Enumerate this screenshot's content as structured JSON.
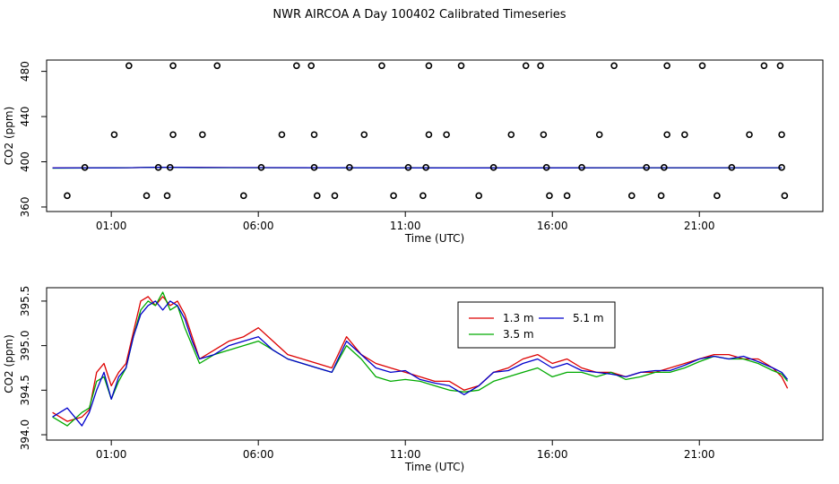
{
  "title": "NWR AIRCOA A  Day 100402  Calibrated Timeseries",
  "colors": {
    "h13": "#dd0000",
    "h35": "#00aa00",
    "h51": "#0000cc",
    "axis": "#000000"
  },
  "chart_data": [
    {
      "type": "scatter",
      "title": "NWR AIRCOA A  Day 100402  Calibrated Timeseries",
      "xlabel": "Time (UTC)",
      "ylabel": "CO2 (ppm)",
      "x_unit": "hours UTC",
      "xlim": [
        -1.2,
        25.2
      ],
      "ylim": [
        356,
        490
      ],
      "xticks": [
        1,
        6,
        11,
        16,
        21
      ],
      "xtick_labels": [
        "01:00",
        "06:00",
        "11:00",
        "16:00",
        "21:00"
      ],
      "yticks": [
        360,
        400,
        440,
        480
      ],
      "ytick_labels": [
        "360",
        "400",
        "440",
        "480"
      ],
      "points": [
        [
          -0.5,
          370
        ],
        [
          0.1,
          395
        ],
        [
          1.1,
          424
        ],
        [
          1.6,
          485
        ],
        [
          2.2,
          370
        ],
        [
          2.6,
          395
        ],
        [
          2.9,
          370
        ],
        [
          3.0,
          395
        ],
        [
          3.1,
          424
        ],
        [
          3.1,
          485
        ],
        [
          4.1,
          424
        ],
        [
          4.6,
          485
        ],
        [
          5.5,
          370
        ],
        [
          6.1,
          395
        ],
        [
          6.8,
          424
        ],
        [
          7.3,
          485
        ],
        [
          7.8,
          485
        ],
        [
          7.9,
          424
        ],
        [
          7.9,
          395
        ],
        [
          8.0,
          370
        ],
        [
          8.6,
          370
        ],
        [
          9.1,
          395
        ],
        [
          9.6,
          424
        ],
        [
          10.2,
          485
        ],
        [
          10.6,
          370
        ],
        [
          11.1,
          395
        ],
        [
          11.6,
          370
        ],
        [
          11.7,
          395
        ],
        [
          11.8,
          424
        ],
        [
          11.8,
          485
        ],
        [
          12.4,
          424
        ],
        [
          12.9,
          485
        ],
        [
          13.5,
          370
        ],
        [
          14.0,
          395
        ],
        [
          14.6,
          424
        ],
        [
          15.1,
          485
        ],
        [
          15.6,
          485
        ],
        [
          15.7,
          424
        ],
        [
          15.8,
          395
        ],
        [
          15.9,
          370
        ],
        [
          16.5,
          370
        ],
        [
          17.0,
          395
        ],
        [
          17.6,
          424
        ],
        [
          18.1,
          485
        ],
        [
          18.7,
          370
        ],
        [
          19.2,
          395
        ],
        [
          19.7,
          370
        ],
        [
          19.8,
          395
        ],
        [
          19.9,
          424
        ],
        [
          19.9,
          485
        ],
        [
          20.5,
          424
        ],
        [
          21.1,
          485
        ],
        [
          21.6,
          370
        ],
        [
          22.1,
          395
        ],
        [
          22.7,
          424
        ],
        [
          23.2,
          485
        ],
        [
          23.75,
          485
        ],
        [
          23.8,
          424
        ],
        [
          23.8,
          395
        ],
        [
          23.9,
          370
        ]
      ],
      "series": [
        {
          "name": "1.3 m",
          "mean_line": [
            [
              -1.0,
              394.5
            ],
            [
              1.5,
              394.7
            ],
            [
              2.5,
              395.2
            ],
            [
              4.0,
              394.9
            ],
            [
              8.0,
              394.8
            ],
            [
              13.0,
              394.5
            ],
            [
              18.0,
              394.7
            ],
            [
              23.8,
              394.7
            ]
          ]
        },
        {
          "name": "3.5 m",
          "mean_line": [
            [
              -1.0,
              394.4
            ],
            [
              1.5,
              394.7
            ],
            [
              2.5,
              395.2
            ],
            [
              4.0,
              394.8
            ],
            [
              8.0,
              394.7
            ],
            [
              13.0,
              394.5
            ],
            [
              18.0,
              394.6
            ],
            [
              23.8,
              394.6
            ]
          ]
        },
        {
          "name": "5.1 m",
          "mean_line": [
            [
              -1.0,
              394.5
            ],
            [
              1.5,
              394.7
            ],
            [
              2.5,
              395.2
            ],
            [
              4.0,
              394.9
            ],
            [
              8.0,
              394.8
            ],
            [
              13.0,
              394.5
            ],
            [
              18.0,
              394.7
            ],
            [
              23.8,
              394.7
            ]
          ]
        }
      ]
    },
    {
      "type": "line",
      "title": "",
      "xlabel": "Time (UTC)",
      "ylabel": "CO2 (ppm)",
      "x_unit": "hours UTC",
      "xlim": [
        -1.2,
        25.2
      ],
      "ylim": [
        393.94,
        395.65
      ],
      "xticks": [
        1,
        6,
        11,
        16,
        21
      ],
      "xtick_labels": [
        "01:00",
        "06:00",
        "11:00",
        "16:00",
        "21:00"
      ],
      "yticks": [
        394.0,
        394.5,
        395.0,
        395.5
      ],
      "ytick_labels": [
        "394.0",
        "394.5",
        "395.0",
        "395.5"
      ],
      "legend": {
        "position": "top-center",
        "entries": [
          "1.3 m",
          "5.1 m",
          "3.5 m"
        ]
      },
      "series": [
        {
          "name": "1.3 m",
          "points": [
            [
              -1.0,
              394.25
            ],
            [
              -0.5,
              394.15
            ],
            [
              0.0,
              394.2
            ],
            [
              0.25,
              394.28
            ],
            [
              0.5,
              394.7
            ],
            [
              0.75,
              394.8
            ],
            [
              1.0,
              394.55
            ],
            [
              1.25,
              394.7
            ],
            [
              1.5,
              394.8
            ],
            [
              1.75,
              395.15
            ],
            [
              2.0,
              395.5
            ],
            [
              2.25,
              395.55
            ],
            [
              2.5,
              395.45
            ],
            [
              2.75,
              395.55
            ],
            [
              3.0,
              395.45
            ],
            [
              3.25,
              395.5
            ],
            [
              3.5,
              395.35
            ],
            [
              3.75,
              395.1
            ],
            [
              4.0,
              394.85
            ],
            [
              4.5,
              394.95
            ],
            [
              5.0,
              395.05
            ],
            [
              5.5,
              395.1
            ],
            [
              6.0,
              395.2
            ],
            [
              6.5,
              395.05
            ],
            [
              7.0,
              394.9
            ],
            [
              7.5,
              394.85
            ],
            [
              8.0,
              394.8
            ],
            [
              8.5,
              394.75
            ],
            [
              9.0,
              395.1
            ],
            [
              9.5,
              394.9
            ],
            [
              10.0,
              394.8
            ],
            [
              10.5,
              394.75
            ],
            [
              11.0,
              394.7
            ],
            [
              11.5,
              394.65
            ],
            [
              12.0,
              394.6
            ],
            [
              12.5,
              394.6
            ],
            [
              13.0,
              394.5
            ],
            [
              13.5,
              394.55
            ],
            [
              14.0,
              394.7
            ],
            [
              14.5,
              394.75
            ],
            [
              15.0,
              394.85
            ],
            [
              15.5,
              394.9
            ],
            [
              16.0,
              394.8
            ],
            [
              16.5,
              394.85
            ],
            [
              17.0,
              394.75
            ],
            [
              17.5,
              394.7
            ],
            [
              18.0,
              394.7
            ],
            [
              18.5,
              394.65
            ],
            [
              19.0,
              394.7
            ],
            [
              19.5,
              394.7
            ],
            [
              20.0,
              394.75
            ],
            [
              20.5,
              394.8
            ],
            [
              21.0,
              394.85
            ],
            [
              21.5,
              394.9
            ],
            [
              22.0,
              394.9
            ],
            [
              22.5,
              394.85
            ],
            [
              23.0,
              394.85
            ],
            [
              23.5,
              394.75
            ],
            [
              23.8,
              394.65
            ],
            [
              24.0,
              394.52
            ]
          ]
        },
        {
          "name": "3.5 m",
          "points": [
            [
              -1.0,
              394.2
            ],
            [
              -0.5,
              394.1
            ],
            [
              0.0,
              394.25
            ],
            [
              0.25,
              394.3
            ],
            [
              0.5,
              394.6
            ],
            [
              0.75,
              394.65
            ],
            [
              1.0,
              394.4
            ],
            [
              1.25,
              394.6
            ],
            [
              1.5,
              394.75
            ],
            [
              1.75,
              395.1
            ],
            [
              2.0,
              395.4
            ],
            [
              2.25,
              395.5
            ],
            [
              2.5,
              395.45
            ],
            [
              2.75,
              395.6
            ],
            [
              3.0,
              395.4
            ],
            [
              3.25,
              395.45
            ],
            [
              3.5,
              395.2
            ],
            [
              3.75,
              395.0
            ],
            [
              4.0,
              394.8
            ],
            [
              4.5,
              394.9
            ],
            [
              5.0,
              394.95
            ],
            [
              5.5,
              395.0
            ],
            [
              6.0,
              395.05
            ],
            [
              6.5,
              394.95
            ],
            [
              7.0,
              394.85
            ],
            [
              7.5,
              394.8
            ],
            [
              8.0,
              394.75
            ],
            [
              8.5,
              394.7
            ],
            [
              9.0,
              395.0
            ],
            [
              9.5,
              394.85
            ],
            [
              10.0,
              394.65
            ],
            [
              10.5,
              394.6
            ],
            [
              11.0,
              394.62
            ],
            [
              11.5,
              394.6
            ],
            [
              12.0,
              394.55
            ],
            [
              12.5,
              394.5
            ],
            [
              13.0,
              394.48
            ],
            [
              13.5,
              394.5
            ],
            [
              14.0,
              394.6
            ],
            [
              14.5,
              394.65
            ],
            [
              15.0,
              394.7
            ],
            [
              15.5,
              394.75
            ],
            [
              16.0,
              394.65
            ],
            [
              16.5,
              394.7
            ],
            [
              17.0,
              394.7
            ],
            [
              17.5,
              394.65
            ],
            [
              18.0,
              394.7
            ],
            [
              18.5,
              394.62
            ],
            [
              19.0,
              394.65
            ],
            [
              19.5,
              394.7
            ],
            [
              20.0,
              394.7
            ],
            [
              20.5,
              394.75
            ],
            [
              21.0,
              394.82
            ],
            [
              21.5,
              394.88
            ],
            [
              22.0,
              394.85
            ],
            [
              22.5,
              394.85
            ],
            [
              23.0,
              394.8
            ],
            [
              23.5,
              394.72
            ],
            [
              23.8,
              394.68
            ],
            [
              24.0,
              394.6
            ]
          ]
        },
        {
          "name": "5.1 m",
          "points": [
            [
              -1.0,
              394.2
            ],
            [
              -0.5,
              394.3
            ],
            [
              0.0,
              394.1
            ],
            [
              0.25,
              394.25
            ],
            [
              0.5,
              394.5
            ],
            [
              0.75,
              394.7
            ],
            [
              1.0,
              394.4
            ],
            [
              1.25,
              394.65
            ],
            [
              1.5,
              394.75
            ],
            [
              1.75,
              395.1
            ],
            [
              2.0,
              395.35
            ],
            [
              2.25,
              395.45
            ],
            [
              2.5,
              395.5
            ],
            [
              2.75,
              395.4
            ],
            [
              3.0,
              395.5
            ],
            [
              3.25,
              395.45
            ],
            [
              3.5,
              395.3
            ],
            [
              3.75,
              395.05
            ],
            [
              4.0,
              394.85
            ],
            [
              4.5,
              394.9
            ],
            [
              5.0,
              395.0
            ],
            [
              5.5,
              395.05
            ],
            [
              6.0,
              395.1
            ],
            [
              6.5,
              394.95
            ],
            [
              7.0,
              394.85
            ],
            [
              7.5,
              394.8
            ],
            [
              8.0,
              394.75
            ],
            [
              8.5,
              394.7
            ],
            [
              9.0,
              395.05
            ],
            [
              9.5,
              394.9
            ],
            [
              10.0,
              394.75
            ],
            [
              10.5,
              394.7
            ],
            [
              11.0,
              394.72
            ],
            [
              11.5,
              394.62
            ],
            [
              12.0,
              394.58
            ],
            [
              12.5,
              394.55
            ],
            [
              13.0,
              394.45
            ],
            [
              13.5,
              394.55
            ],
            [
              14.0,
              394.7
            ],
            [
              14.5,
              394.72
            ],
            [
              15.0,
              394.8
            ],
            [
              15.5,
              394.85
            ],
            [
              16.0,
              394.75
            ],
            [
              16.5,
              394.8
            ],
            [
              17.0,
              394.72
            ],
            [
              17.5,
              394.7
            ],
            [
              18.0,
              394.68
            ],
            [
              18.5,
              394.65
            ],
            [
              19.0,
              394.7
            ],
            [
              19.5,
              394.72
            ],
            [
              20.0,
              394.72
            ],
            [
              20.5,
              394.78
            ],
            [
              21.0,
              394.85
            ],
            [
              21.5,
              394.88
            ],
            [
              22.0,
              394.85
            ],
            [
              22.5,
              394.88
            ],
            [
              23.0,
              394.82
            ],
            [
              23.5,
              394.75
            ],
            [
              23.8,
              394.7
            ],
            [
              24.0,
              394.62
            ]
          ]
        }
      ]
    }
  ]
}
